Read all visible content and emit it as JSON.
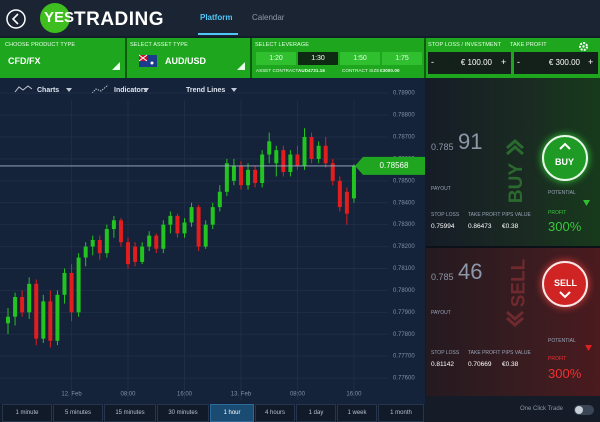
{
  "header": {
    "logo_yes": "YES",
    "logo_trading": "TRADING",
    "tabs": [
      "Platform",
      "Calendar"
    ]
  },
  "toolbar": {
    "product_label": "CHOOSE PRODUCT TYPE",
    "product_value": "CFD/FX",
    "asset_label": "SELECT ASSET TYPE",
    "asset_value": "AUD/USD",
    "leverage_label": "SELECT LEVERAGE",
    "leverages": [
      "1:20",
      "1:30",
      "1:50",
      "1:75"
    ],
    "asset_contract_label": "ASSET CONTRACT",
    "asset_contract_value": "AUD4731.16",
    "contract_size_label": "CONTRACT SIZE",
    "contract_size_value": "€3000.00",
    "stop_loss_label": "STOP LOSS / INVESTMENT",
    "stop_loss_value": "€ 100.00",
    "take_profit_label": "TAKE PROFIT",
    "take_profit_value": "€ 300.00",
    "minus": "-",
    "plus": "+"
  },
  "chart_tools": [
    "Charts",
    "Indicators",
    "Trend Lines"
  ],
  "chart_data": {
    "type": "candlestick",
    "categories": [
      null,
      null,
      null,
      null,
      null,
      null,
      null,
      null,
      null,
      "12. Feb",
      null,
      null,
      null,
      null,
      null,
      null,
      null,
      "08:00",
      null,
      null,
      null,
      null,
      null,
      null,
      null,
      "16:00",
      null,
      null,
      null,
      null,
      null,
      null,
      null,
      "13. Feb",
      null,
      null,
      null,
      null,
      null,
      null,
      null,
      "08:00",
      null,
      null,
      null,
      null,
      null,
      null,
      null,
      "16:00"
    ],
    "open": [
      0.7785,
      0.7788,
      0.7797,
      0.779,
      0.7803,
      0.7778,
      0.7795,
      0.7777,
      0.7798,
      0.7808,
      0.779,
      0.7815,
      0.782,
      0.7823,
      0.7817,
      0.7828,
      0.7832,
      0.7822,
      0.782,
      0.7813,
      0.782,
      0.7825,
      0.7819,
      0.783,
      0.7834,
      0.7826,
      0.7831,
      0.7838,
      0.782,
      0.783,
      0.7838,
      0.7845,
      0.785,
      0.7857,
      0.7848,
      0.7855,
      0.7849,
      0.7862,
      0.7858,
      0.7864,
      0.7854,
      0.7862,
      0.7857,
      0.787,
      0.786,
      0.7866,
      0.7858,
      0.785,
      0.7845,
      0.7842
    ],
    "high": [
      0.7792,
      0.7799,
      0.78,
      0.7806,
      0.7805,
      0.7798,
      0.78,
      0.78,
      0.781,
      0.7812,
      0.7817,
      0.7822,
      0.7825,
      0.7825,
      0.783,
      0.7834,
      0.7833,
      0.7824,
      0.7822,
      0.7822,
      0.7827,
      0.7826,
      0.7832,
      0.7836,
      0.7835,
      0.7833,
      0.784,
      0.7839,
      0.7832,
      0.784,
      0.7848,
      0.786,
      0.786,
      0.7859,
      0.7858,
      0.7857,
      0.7864,
      0.7872,
      0.7866,
      0.7866,
      0.7864,
      0.7866,
      0.7874,
      0.7872,
      0.7868,
      0.787,
      0.786,
      0.7852,
      0.7847,
      0.78575
    ],
    "low": [
      0.778,
      0.7784,
      0.7788,
      0.7787,
      0.7775,
      0.7776,
      0.7774,
      0.7775,
      0.7794,
      0.7786,
      0.7788,
      0.7811,
      0.7816,
      0.7814,
      0.7815,
      0.7824,
      0.782,
      0.781,
      0.7811,
      0.7812,
      0.7818,
      0.7817,
      0.7817,
      0.7826,
      0.7824,
      0.7824,
      0.7829,
      0.7818,
      0.7819,
      0.7828,
      0.7836,
      0.7843,
      0.7848,
      0.7846,
      0.7846,
      0.7847,
      0.7847,
      0.7858,
      0.7852,
      0.7852,
      0.7852,
      0.7855,
      0.7855,
      0.7858,
      0.7858,
      0.7856,
      0.7848,
      0.7836,
      0.783,
      0.784
    ],
    "close": [
      0.7788,
      0.7797,
      0.779,
      0.7803,
      0.7778,
      0.7795,
      0.7777,
      0.7798,
      0.7808,
      0.779,
      0.7815,
      0.782,
      0.7823,
      0.7817,
      0.7828,
      0.7832,
      0.7822,
      0.7812,
      0.7813,
      0.782,
      0.7825,
      0.7819,
      0.783,
      0.7834,
      0.7826,
      0.7831,
      0.7838,
      0.782,
      0.783,
      0.7838,
      0.7845,
      0.7858,
      0.7857,
      0.7848,
      0.7855,
      0.7849,
      0.7862,
      0.7868,
      0.7864,
      0.7854,
      0.7862,
      0.7857,
      0.787,
      0.786,
      0.7866,
      0.7858,
      0.785,
      0.7838,
      0.7835,
      0.78568
    ],
    "up_color": "#22c51f",
    "down_color": "#e11d1d",
    "current_price": 0.78568,
    "current_color": "#1fa51f",
    "ylim": [
      0.775,
      0.7896
    ],
    "yticks": [
      {
        "value": 0.776,
        "label": "0.77600"
      },
      {
        "value": 0.777,
        "label": "0.77700"
      },
      {
        "value": 0.778,
        "label": "0.77800"
      },
      {
        "value": 0.779,
        "label": "0.77900"
      },
      {
        "value": 0.78,
        "label": "0.78000"
      },
      {
        "value": 0.781,
        "label": "0.78100"
      },
      {
        "value": 0.782,
        "label": "0.78200"
      },
      {
        "value": 0.783,
        "label": "0.78300"
      },
      {
        "value": 0.784,
        "label": "0.78400"
      },
      {
        "value": 0.785,
        "label": "0.78500"
      },
      {
        "value": 0.786,
        "label": "0.78600"
      },
      {
        "value": 0.787,
        "label": "0.78700"
      },
      {
        "value": 0.788,
        "label": "0.78800"
      },
      {
        "value": 0.789,
        "label": "0.78900"
      }
    ],
    "grid": true
  },
  "timeframes": [
    "1 minute",
    "5 minutes",
    "15 minutes",
    "30 minutes",
    "1 hour",
    "4 hours",
    "1 day",
    "1 week",
    "1 month"
  ],
  "buy": {
    "price_prefix": "0.785",
    "price_big": "91",
    "payout": "PAYOUT",
    "side": "BUY",
    "stat_labels": [
      "STOP LOSS",
      "TAKE PROFIT",
      "PIPS VALUE"
    ],
    "stat_values": [
      "0.75994",
      "0.86473",
      "€0.38"
    ],
    "potential": "POTENTIAL",
    "profit": "PROFIT",
    "percent": "300%"
  },
  "sell": {
    "price_prefix": "0.785",
    "price_big": "46",
    "payout": "PAYOUT",
    "side": "SELL",
    "stat_labels": [
      "STOP LOSS",
      "TAKE PROFIT",
      "PIPS VALUE"
    ],
    "stat_values": [
      "0.81142",
      "0.70669",
      "€0.38"
    ],
    "potential": "POTENTIAL",
    "profit": "PROFIT",
    "percent": "300%"
  },
  "one_click": "One Click Trade"
}
